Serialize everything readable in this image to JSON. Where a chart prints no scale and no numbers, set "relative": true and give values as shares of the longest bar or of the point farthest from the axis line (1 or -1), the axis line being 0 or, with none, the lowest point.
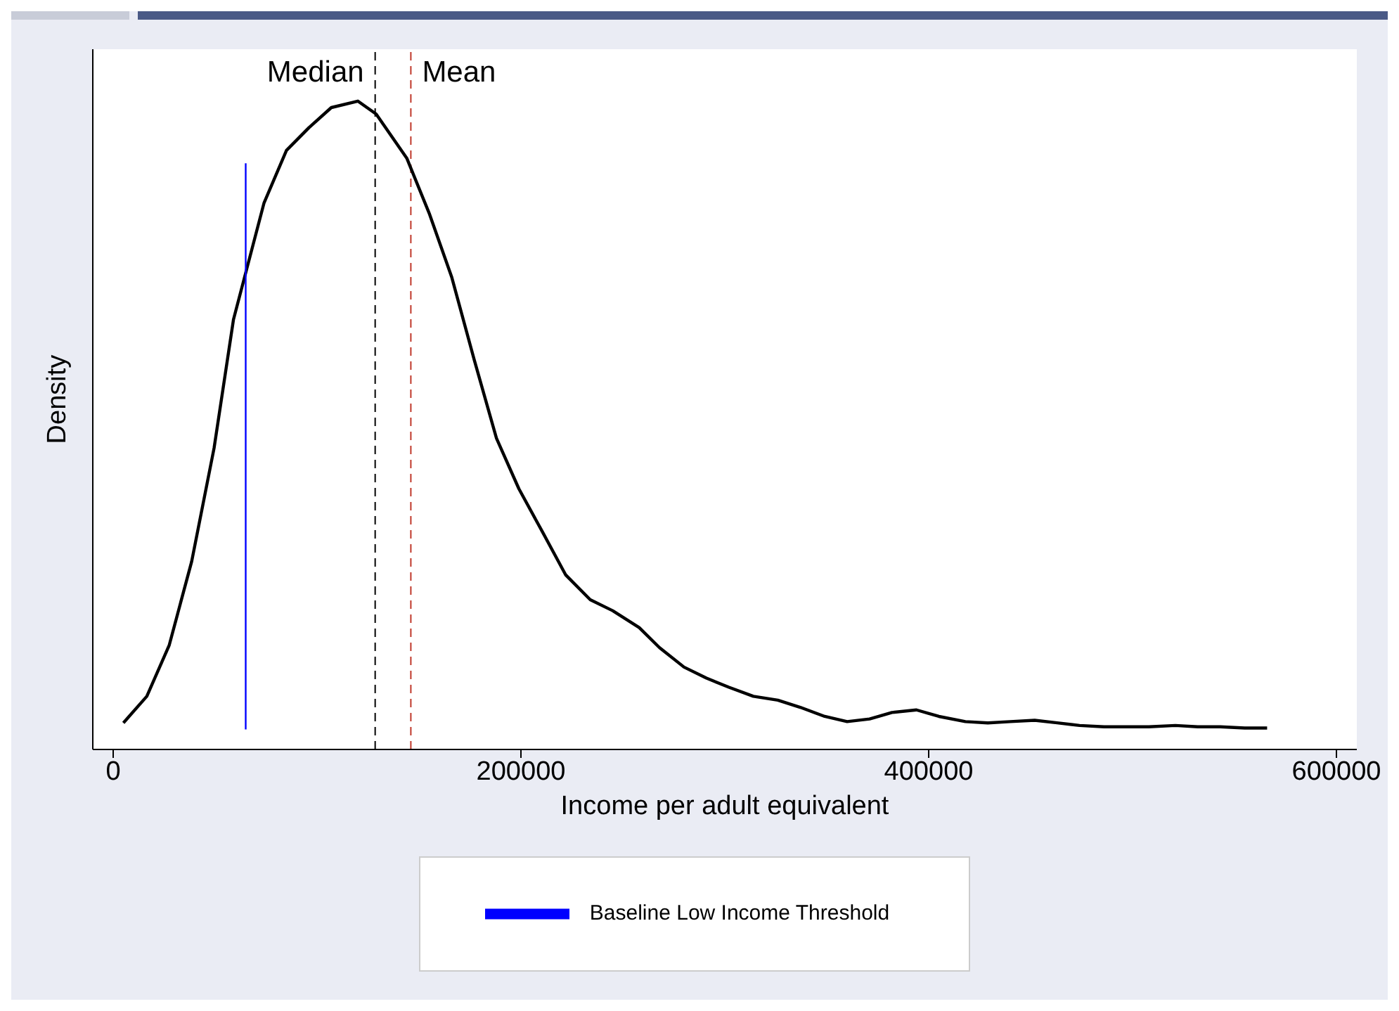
{
  "chart_data": {
    "type": "line",
    "xlabel": "Income per adult equivalent",
    "ylabel": "Density",
    "relative": true,
    "xlim": [
      -10000,
      610000
    ],
    "xticks": [
      0,
      200000,
      400000,
      600000
    ],
    "legend": "bottom",
    "grid": false,
    "marker": "none",
    "series": [
      {
        "color": "#000000",
        "x": [
          5000,
          16500,
          27500,
          38500,
          49500,
          59000,
          74000,
          85000,
          96000,
          107000,
          120000,
          129000,
          144000,
          155000,
          166000,
          177000,
          188000,
          199000,
          211000,
          222000,
          234000,
          245000,
          258000,
          268000,
          280000,
          291000,
          302000,
          314000,
          326000,
          337000,
          349000,
          360000,
          371000,
          382000,
          394000,
          405000,
          418000,
          429000,
          440000,
          452000,
          463000,
          474000,
          486000,
          497000,
          508000,
          521000,
          532000,
          543000,
          555000,
          566000
        ],
        "values": [
          0.041,
          0.082,
          0.161,
          0.29,
          0.465,
          0.663,
          0.843,
          0.924,
          0.959,
          0.99,
          1,
          0.98,
          0.912,
          0.827,
          0.729,
          0.602,
          0.48,
          0.402,
          0.333,
          0.269,
          0.231,
          0.214,
          0.188,
          0.157,
          0.127,
          0.11,
          0.096,
          0.082,
          0.076,
          0.065,
          0.051,
          0.043,
          0.047,
          0.057,
          0.061,
          0.051,
          0.043,
          0.041,
          0.043,
          0.045,
          0.041,
          0.037,
          0.035,
          0.035,
          0.035,
          0.037,
          0.035,
          0.035,
          0.033,
          0.033
        ]
      },
      {
        "name": "Baseline Low Income Threshold",
        "color": "#0000ff",
        "x": [
          65000,
          65000
        ],
        "values": [
          0.031,
          0.904
        ]
      }
    ],
    "ref_lines": [
      {
        "axis": "x",
        "value": 128500,
        "label": "Median",
        "color": "#000000",
        "line_style": "dashed"
      },
      {
        "axis": "x",
        "value": 146000,
        "label": "Mean",
        "color": "#c0392b",
        "line_style": "dashed"
      }
    ]
  }
}
